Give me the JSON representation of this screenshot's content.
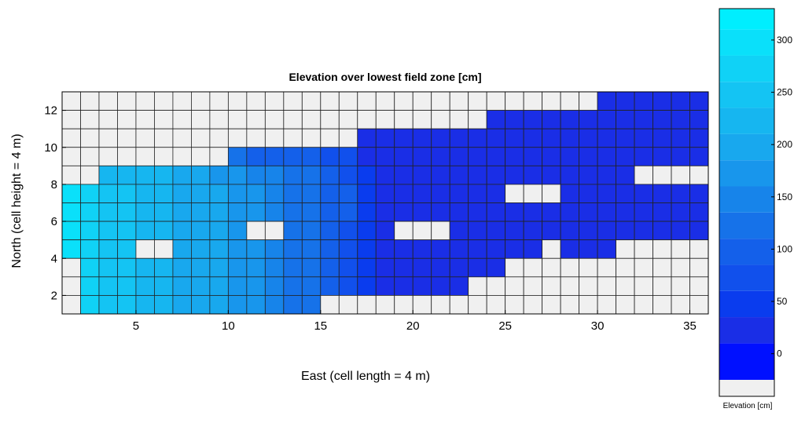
{
  "chart_data": {
    "type": "heatmap",
    "title": "Elevation over lowest field zone [cm]",
    "xlabel": "East (cell length = 4 m)",
    "ylabel": "North (cell height = 4 m)",
    "xlim": [
      1,
      36
    ],
    "ylim": [
      1,
      13
    ],
    "x_ticks": [
      5,
      10,
      15,
      20,
      25,
      30,
      35
    ],
    "y_ticks": [
      2,
      4,
      6,
      8,
      10,
      12
    ],
    "grid": true,
    "missing_color": "#f0f0f0",
    "colorbar": {
      "label": "Elevation [cm]",
      "range": [
        -25,
        330
      ],
      "ticks": [
        0,
        50,
        100,
        150,
        200,
        250,
        300
      ],
      "band_edges": [
        -25,
        10,
        35,
        60,
        85,
        110,
        135,
        160,
        185,
        210,
        235,
        260,
        285,
        310,
        330
      ],
      "colors": [
        "#0010ff",
        "#1a2ee6",
        "#0a3cee",
        "#1150ec",
        "#1460ea",
        "#1672e9",
        "#1784ea",
        "#1896ec",
        "#18a8ee",
        "#16b6f0",
        "#14c4f3",
        "#10d2f6",
        "#0ae0fa",
        "#00eefe"
      ]
    },
    "row_y_values": [
      12.5,
      11.5,
      10.5,
      9.5,
      8.5,
      7.5,
      6.5,
      5.5,
      4.5,
      3.5,
      2.5,
      1.5
    ],
    "col_x_values": [
      1.5,
      2.5,
      3.5,
      4.5,
      5.5,
      6.5,
      7.5,
      8.5,
      9.5,
      10.5,
      11.5,
      12.5,
      13.5,
      14.5,
      15.5,
      16.5,
      17.5,
      18.5,
      19.5,
      20.5,
      21.5,
      22.5,
      23.5,
      24.5,
      25.5,
      26.5,
      27.5,
      28.5,
      29.5,
      30.5,
      31.5,
      32.5,
      33.5,
      34.5,
      35.5
    ],
    "z": [
      [
        null,
        null,
        null,
        null,
        null,
        null,
        null,
        null,
        null,
        null,
        null,
        null,
        null,
        null,
        null,
        null,
        null,
        null,
        null,
        null,
        null,
        null,
        null,
        null,
        null,
        null,
        null,
        null,
        null,
        10,
        10,
        10,
        10,
        10,
        10
      ],
      [
        null,
        null,
        null,
        null,
        null,
        null,
        null,
        null,
        null,
        null,
        null,
        null,
        null,
        null,
        null,
        null,
        null,
        null,
        null,
        null,
        null,
        null,
        null,
        10,
        10,
        10,
        10,
        10,
        25,
        10,
        10,
        10,
        10,
        10,
        10
      ],
      [
        null,
        null,
        null,
        null,
        null,
        null,
        null,
        null,
        null,
        null,
        null,
        null,
        null,
        null,
        null,
        null,
        20,
        25,
        20,
        10,
        10,
        10,
        10,
        10,
        25,
        25,
        25,
        10,
        10,
        10,
        10,
        20,
        20,
        10,
        10
      ],
      [
        null,
        null,
        null,
        null,
        null,
        null,
        null,
        null,
        null,
        110,
        100,
        100,
        95,
        90,
        80,
        70,
        20,
        20,
        20,
        20,
        10,
        10,
        10,
        10,
        10,
        10,
        10,
        10,
        10,
        10,
        10,
        10,
        10,
        10,
        10
      ],
      [
        null,
        null,
        230,
        225,
        220,
        210,
        200,
        190,
        180,
        170,
        150,
        140,
        130,
        120,
        100,
        80,
        40,
        30,
        20,
        20,
        10,
        10,
        10,
        10,
        10,
        10,
        10,
        10,
        10,
        10,
        10,
        null,
        null,
        null,
        null
      ],
      [
        300,
        280,
        250,
        235,
        225,
        215,
        205,
        195,
        185,
        175,
        160,
        145,
        130,
        115,
        100,
        85,
        50,
        30,
        20,
        10,
        10,
        10,
        10,
        10,
        null,
        null,
        null,
        10,
        10,
        10,
        10,
        10,
        10,
        10,
        10
      ],
      [
        300,
        280,
        250,
        235,
        225,
        215,
        205,
        195,
        185,
        175,
        160,
        145,
        130,
        115,
        100,
        85,
        50,
        10,
        10,
        10,
        10,
        10,
        10,
        10,
        10,
        10,
        10,
        10,
        10,
        10,
        10,
        10,
        10,
        10,
        10
      ],
      [
        300,
        280,
        250,
        235,
        225,
        215,
        205,
        195,
        185,
        175,
        null,
        null,
        130,
        115,
        100,
        70,
        50,
        10,
        null,
        null,
        null,
        10,
        10,
        10,
        10,
        10,
        10,
        10,
        10,
        10,
        10,
        10,
        10,
        10,
        10
      ],
      [
        300,
        280,
        250,
        235,
        null,
        null,
        205,
        195,
        185,
        175,
        160,
        145,
        130,
        115,
        100,
        70,
        50,
        10,
        10,
        10,
        10,
        10,
        10,
        10,
        10,
        10,
        null,
        10,
        10,
        10,
        null,
        null,
        null,
        null,
        null
      ],
      [
        null,
        280,
        250,
        235,
        225,
        215,
        205,
        195,
        185,
        175,
        160,
        145,
        130,
        115,
        100,
        70,
        50,
        10,
        10,
        10,
        10,
        10,
        10,
        10,
        null,
        null,
        null,
        null,
        null,
        null,
        null,
        null,
        null,
        null,
        null
      ],
      [
        null,
        280,
        250,
        235,
        225,
        215,
        205,
        195,
        185,
        175,
        160,
        145,
        130,
        115,
        100,
        70,
        50,
        10,
        10,
        10,
        10,
        10,
        null,
        null,
        null,
        null,
        null,
        null,
        null,
        null,
        null,
        null,
        null,
        null,
        null
      ],
      [
        null,
        280,
        250,
        235,
        225,
        215,
        205,
        195,
        185,
        175,
        160,
        145,
        130,
        115,
        null,
        null,
        null,
        null,
        null,
        null,
        null,
        null,
        null,
        null,
        null,
        null,
        null,
        null,
        null,
        null,
        null,
        null,
        null,
        null,
        null
      ]
    ]
  }
}
